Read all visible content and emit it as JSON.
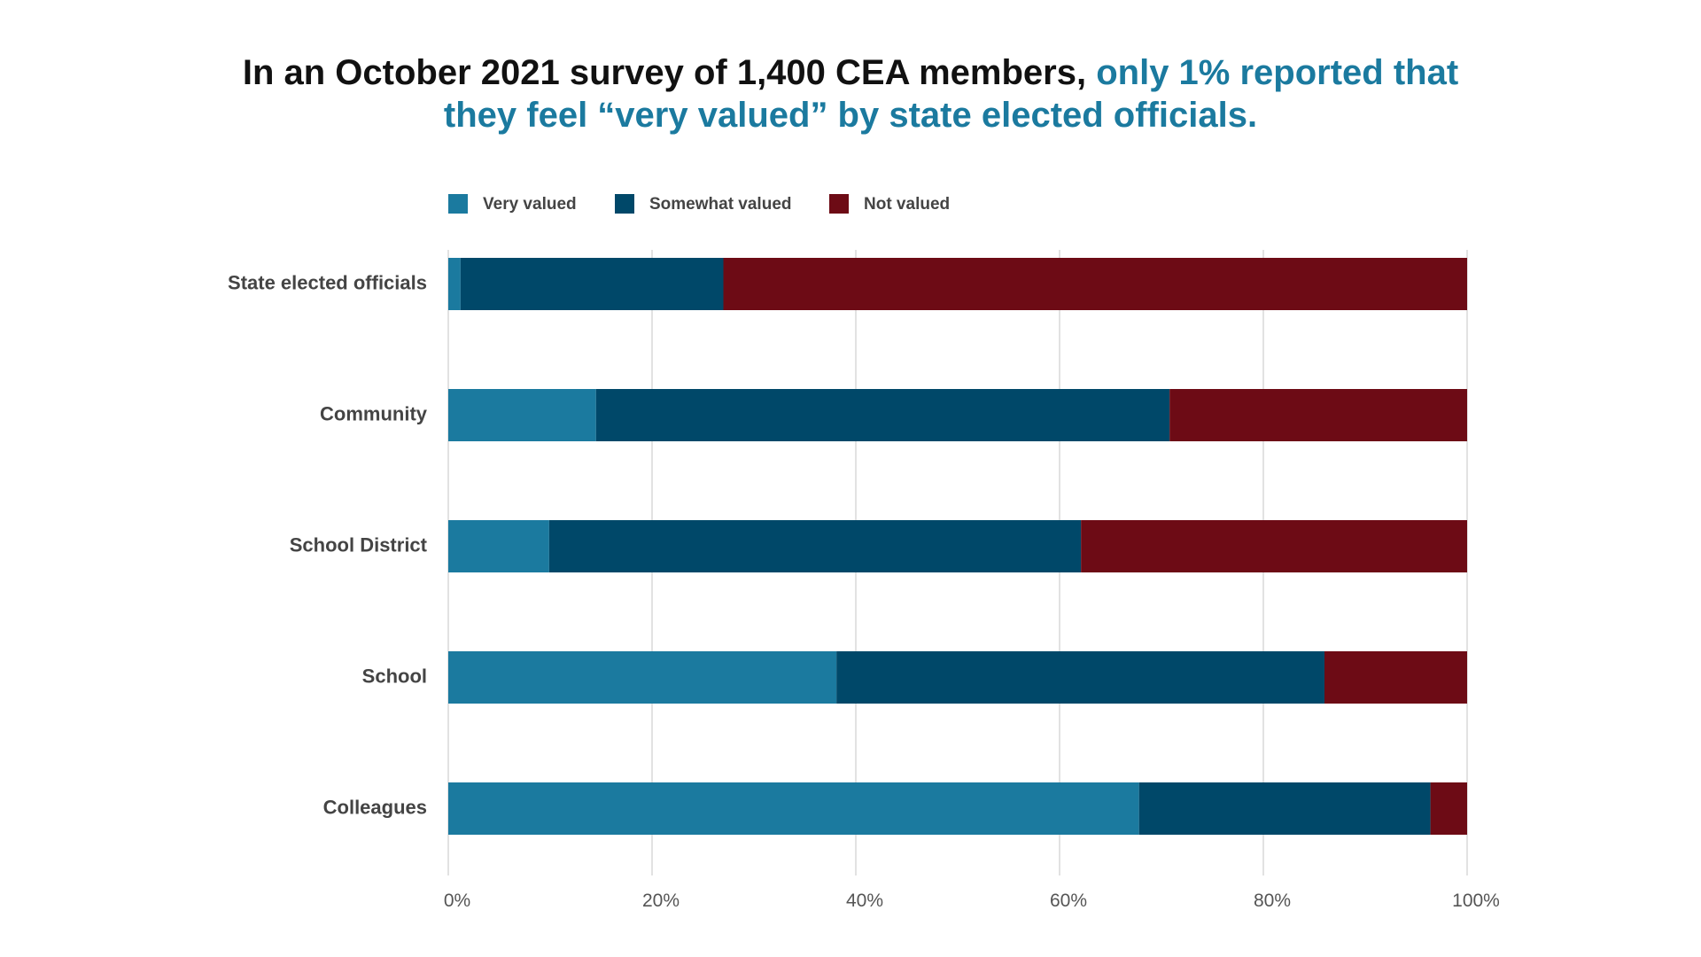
{
  "header": {
    "title_part1": "In an October 2021 survey of 1,400 CEA members,",
    "title_part2": "only 1% reported that",
    "title_part3": "they feel “very valued” by state elected officials."
  },
  "colors": {
    "very_valued": "#1b7a9f",
    "somewhat_valued": "#004869",
    "not_valued": "#6d0b15",
    "grid": "#d9d9d9",
    "title_highlight": "#1b7a9f"
  },
  "chart_data": {
    "type": "bar",
    "orientation": "horizontal",
    "stacked": true,
    "categories": [
      "State elected officials",
      "Community",
      "School District",
      "School",
      "Colleagues"
    ],
    "series": [
      {
        "name": "Very valued",
        "values": [
          1.2,
          14.5,
          9.9,
          38.1,
          67.8
        ]
      },
      {
        "name": "Somewhat valued",
        "values": [
          25.8,
          56.3,
          52.2,
          47.9,
          28.6
        ]
      },
      {
        "name": "Not valued",
        "values": [
          73.0,
          29.2,
          37.9,
          14.0,
          3.6
        ]
      }
    ],
    "xlim": [
      0,
      100
    ],
    "xticks": [
      "0%",
      "20%",
      "40%",
      "60%",
      "80%",
      "100%"
    ],
    "xtick_values": [
      0,
      20,
      40,
      60,
      80,
      100
    ],
    "grid": true,
    "legend_position": "top-left"
  }
}
